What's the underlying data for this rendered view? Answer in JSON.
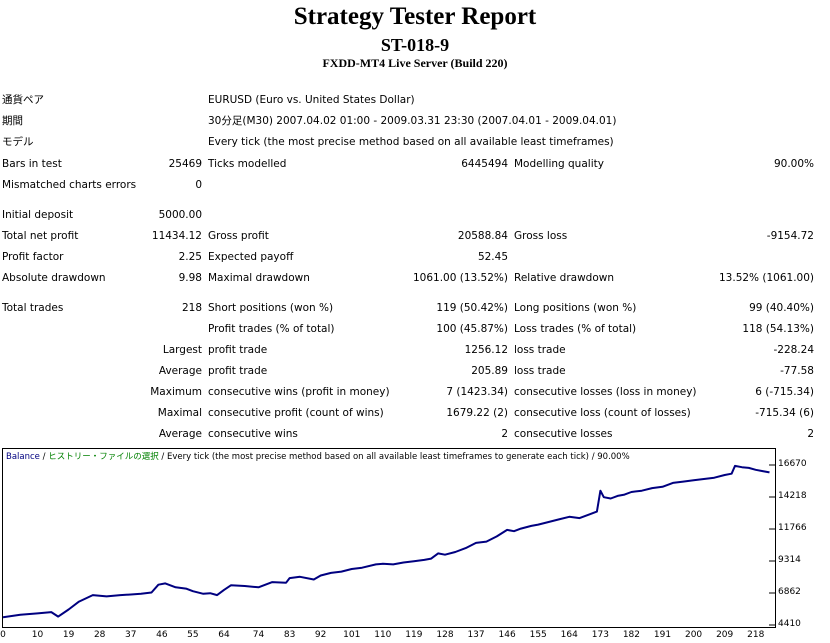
{
  "header": {
    "title": "Strategy Tester Report",
    "symbol_code": "ST-018-9",
    "server": "FXDD-MT4 Live Server (Build 220)"
  },
  "settings": {
    "pair_label": "通貨ペア",
    "pair_value": "EURUSD (Euro vs. United States Dollar)",
    "period_label": "期間",
    "period_value": "30分足(M30) 2007.04.02 01:00 - 2009.03.31 23:30 (2007.04.01 - 2009.04.01)",
    "model_label": "モデル",
    "model_value": "Every tick (the most precise method based on all available least timeframes)"
  },
  "stats": {
    "bars_label": "Bars in test",
    "bars_value": "25469",
    "ticks_label": "Ticks modelled",
    "ticks_value": "6445494",
    "quality_label": "Modelling quality",
    "quality_value": "90.00%",
    "mismatch_label": "Mismatched charts errors",
    "mismatch_value": "0",
    "deposit_label": "Initial deposit",
    "deposit_value": "5000.00",
    "net_label": "Total net profit",
    "net_value": "11434.12",
    "gprofit_label": "Gross profit",
    "gprofit_value": "20588.84",
    "gloss_label": "Gross loss",
    "gloss_value": "-9154.72",
    "pf_label": "Profit factor",
    "pf_value": "2.25",
    "payoff_label": "Expected payoff",
    "payoff_value": "52.45",
    "absdd_label": "Absolute drawdown",
    "absdd_value": "9.98",
    "maxdd_label": "Maximal drawdown",
    "maxdd_value": "1061.00 (13.52%)",
    "reldd_label": "Relative drawdown",
    "reldd_value": "13.52% (1061.00)",
    "trades_label": "Total trades",
    "trades_value": "218",
    "short_label": "Short positions (won %)",
    "short_value": "119 (50.42%)",
    "long_label": "Long positions (won %)",
    "long_value": "99 (40.40%)",
    "ptrades_label": "Profit trades (% of total)",
    "ptrades_value": "100 (45.87%)",
    "ltrades_label": "Loss trades (% of total)",
    "ltrades_value": "118 (54.13%)",
    "largest_label": "Largest",
    "l_profit_label": "profit trade",
    "l_profit_value": "1256.12",
    "l_loss_label": "loss trade",
    "l_loss_value": "-228.24",
    "average_label": "Average",
    "a_profit_label": "profit trade",
    "a_profit_value": "205.89",
    "a_loss_label": "loss trade",
    "a_loss_value": "-77.58",
    "maximum_label": "Maximum",
    "mx_wins_label": "consecutive wins (profit in money)",
    "mx_wins_value": "7 (1423.34)",
    "mx_losses_label": "consecutive losses (loss in money)",
    "mx_losses_value": "6 (-715.34)",
    "maximal_label": "Maximal",
    "ml_profit_label": "consecutive profit (count of wins)",
    "ml_profit_value": "1679.22 (2)",
    "ml_loss_label": "consecutive loss (count of losses)",
    "ml_loss_value": "-715.34 (6)",
    "avg2_label": "Average",
    "ac_wins_label": "consecutive wins",
    "ac_wins_value": "2",
    "ac_losses_label": "consecutive losses",
    "ac_losses_value": "2"
  },
  "legend": {
    "balance": "Balance",
    "sep1": " / ",
    "history": "ヒストリー・ファイルの選択",
    "rest": " / Every tick (the most precise method based on all available least timeframes to generate each tick) / 90.00%"
  },
  "chart_data": {
    "type": "line",
    "series_color": "#000080",
    "legend_color_history": "#008000",
    "y_ticks": [
      "16670",
      "14218",
      "11766",
      "9314",
      "6862",
      "4410"
    ],
    "x_ticks": [
      "0",
      "10",
      "19",
      "28",
      "37",
      "46",
      "55",
      "64",
      "74",
      "83",
      "92",
      "101",
      "110",
      "119",
      "128",
      "137",
      "146",
      "155",
      "164",
      "173",
      "182",
      "191",
      "200",
      "209",
      "218"
    ],
    "ylim": [
      4410,
      16670
    ],
    "xlim": [
      0,
      223
    ],
    "x": [
      0,
      5,
      10,
      14,
      16,
      19,
      22,
      26,
      30,
      34,
      37,
      40,
      43,
      45,
      47,
      50,
      53,
      55,
      58,
      60,
      62,
      64,
      66,
      70,
      74,
      78,
      82,
      83,
      86,
      90,
      92,
      95,
      98,
      101,
      104,
      108,
      110,
      113,
      116,
      119,
      122,
      124,
      126,
      128,
      131,
      134,
      137,
      140,
      143,
      146,
      148,
      150,
      153,
      155,
      158,
      161,
      164,
      167,
      170,
      172,
      173,
      174,
      176,
      178,
      180,
      182,
      185,
      188,
      191,
      194,
      197,
      200,
      203,
      206,
      209,
      211,
      212,
      214,
      216,
      218,
      220,
      222
    ],
    "y": [
      5000,
      5200,
      5300,
      5400,
      5050,
      5600,
      6200,
      6700,
      6600,
      6700,
      6750,
      6800,
      6900,
      7500,
      7600,
      7300,
      7200,
      7000,
      6800,
      6850,
      6700,
      7100,
      7450,
      7400,
      7300,
      7700,
      7650,
      8000,
      8100,
      7900,
      8200,
      8400,
      8500,
      8700,
      8800,
      9050,
      9100,
      9050,
      9200,
      9300,
      9400,
      9500,
      9900,
      9800,
      10000,
      10300,
      10700,
      10800,
      11200,
      11700,
      11600,
      11800,
      12000,
      12100,
      12300,
      12500,
      12700,
      12600,
      12900,
      13100,
      14700,
      14200,
      14100,
      14300,
      14400,
      14600,
      14700,
      14900,
      15000,
      15300,
      15400,
      15500,
      15600,
      15700,
      15900,
      16000,
      16600,
      16500,
      16450,
      16300,
      16200,
      16100
    ]
  }
}
